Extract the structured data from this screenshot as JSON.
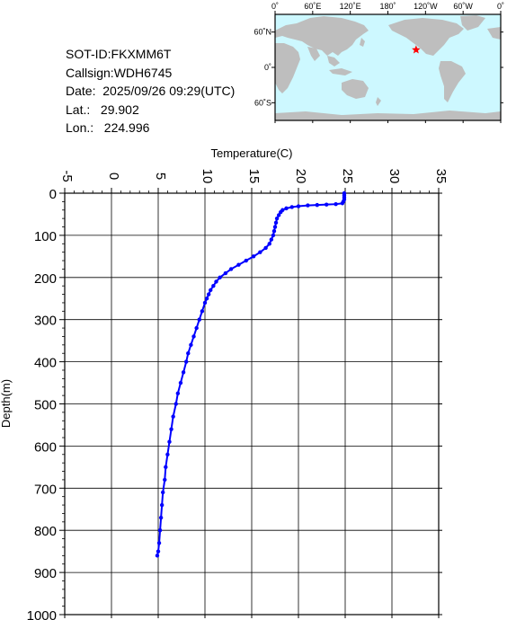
{
  "station": {
    "sot_id": "SOT-ID:FKXMM6T",
    "callsign": "Callsign:WDH6745",
    "date": "Date:  2025/09/26 09:29(UTC)",
    "lat": "Lat.:   29.902",
    "lon": "Lon.:   224.996"
  },
  "map": {
    "lon_labels": [
      "0˚",
      "60˚E",
      "120˚E",
      "180˚",
      "120˚W",
      "60˚W",
      "0˚"
    ],
    "lat_labels": [
      "60˚N",
      "0˚",
      "60˚S"
    ],
    "marker_lon": 224.996,
    "marker_lat": 29.902,
    "ocean_color": "#cdf8ff",
    "land_color": "#bebebe",
    "marker_color": "#ff0000"
  },
  "chart_data": {
    "type": "line",
    "title": "",
    "xlabel": "Temperature(C)",
    "ylabel": "Depth(m)",
    "xlim": [
      -5,
      35
    ],
    "ylim": [
      0,
      1000
    ],
    "y_inverted": true,
    "x_axis_position": "top",
    "x_ticks": [
      -5,
      0,
      5,
      10,
      15,
      20,
      25,
      30,
      35
    ],
    "y_ticks": [
      0,
      100,
      200,
      300,
      400,
      500,
      600,
      700,
      800,
      900,
      1000
    ],
    "grid": true,
    "series": [
      {
        "color": "#0000ff",
        "points": [
          [
            24.9,
            0
          ],
          [
            24.9,
            5
          ],
          [
            24.9,
            10
          ],
          [
            24.9,
            15
          ],
          [
            24.8,
            20
          ],
          [
            24.7,
            24
          ],
          [
            24.0,
            26
          ],
          [
            23.0,
            27
          ],
          [
            22.0,
            28
          ],
          [
            21.0,
            29
          ],
          [
            20.0,
            31
          ],
          [
            19.3,
            33
          ],
          [
            18.7,
            36
          ],
          [
            18.3,
            40
          ],
          [
            18.1,
            45
          ],
          [
            17.9,
            52
          ],
          [
            17.7,
            60
          ],
          [
            17.6,
            70
          ],
          [
            17.5,
            80
          ],
          [
            17.4,
            90
          ],
          [
            17.3,
            100
          ],
          [
            17.1,
            110
          ],
          [
            16.9,
            120
          ],
          [
            16.5,
            130
          ],
          [
            15.9,
            140
          ],
          [
            15.2,
            150
          ],
          [
            14.4,
            160
          ],
          [
            13.6,
            170
          ],
          [
            12.8,
            180
          ],
          [
            12.2,
            190
          ],
          [
            11.6,
            200
          ],
          [
            11.2,
            210
          ],
          [
            10.9,
            220
          ],
          [
            10.6,
            230
          ],
          [
            10.4,
            240
          ],
          [
            10.2,
            250
          ],
          [
            10.0,
            260
          ],
          [
            9.7,
            280
          ],
          [
            9.4,
            300
          ],
          [
            9.1,
            320
          ],
          [
            8.8,
            340
          ],
          [
            8.5,
            360
          ],
          [
            8.2,
            380
          ],
          [
            8.0,
            400
          ],
          [
            7.7,
            425
          ],
          [
            7.4,
            450
          ],
          [
            7.1,
            475
          ],
          [
            6.9,
            500
          ],
          [
            6.6,
            530
          ],
          [
            6.4,
            560
          ],
          [
            6.2,
            590
          ],
          [
            6.0,
            620
          ],
          [
            5.8,
            650
          ],
          [
            5.7,
            680
          ],
          [
            5.5,
            710
          ],
          [
            5.4,
            740
          ],
          [
            5.3,
            770
          ],
          [
            5.2,
            800
          ],
          [
            5.1,
            830
          ],
          [
            5.0,
            850
          ],
          [
            4.9,
            860
          ]
        ]
      }
    ]
  }
}
